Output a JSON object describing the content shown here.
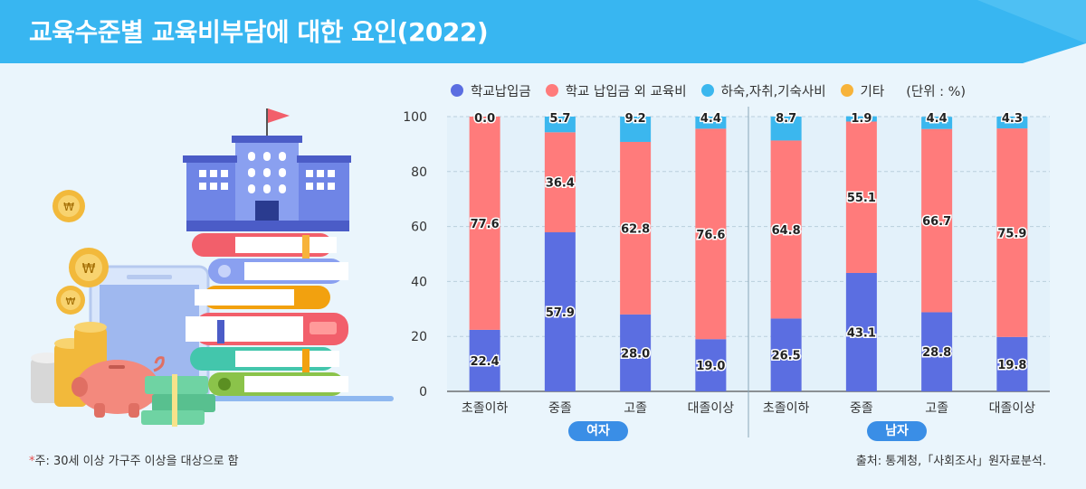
{
  "header": {
    "title": "교육수준별 교육비부담에 대한 요인(2022)",
    "bg_color": "#38b6f1"
  },
  "legend": {
    "items": [
      {
        "label": "학교납입금",
        "color": "#5b6ee1"
      },
      {
        "label": "학교 납입금 외 교육비",
        "color": "#ff7b7b"
      },
      {
        "label": "하숙,자취,기숙사비",
        "color": "#3bb7ee"
      },
      {
        "label": "기타",
        "color": "#f7b33a"
      }
    ],
    "unit": "(단위 : %)"
  },
  "groups": [
    {
      "label": "여자"
    },
    {
      "label": "남자"
    }
  ],
  "footnote": {
    "star": "*",
    "text": "주: 30세 이상 가구주 이상을 대상으로 함"
  },
  "source": "출처: 통계청,「사회조사」원자료분석.",
  "chart_data": {
    "type": "bar",
    "stacked": true,
    "categories": [
      "초졸이하",
      "중졸",
      "고졸",
      "대졸이상",
      "초졸이하",
      "중졸",
      "고졸",
      "대졸이상"
    ],
    "group_labels": [
      "여자",
      "여자",
      "여자",
      "여자",
      "남자",
      "남자",
      "남자",
      "남자"
    ],
    "series": [
      {
        "name": "학교납입금",
        "values": [
          22.4,
          57.9,
          28.0,
          19.0,
          26.5,
          43.1,
          28.8,
          19.8
        ]
      },
      {
        "name": "학교 납입금 외 교육비",
        "values": [
          77.6,
          36.4,
          62.8,
          76.6,
          64.8,
          55.1,
          66.7,
          75.9
        ]
      },
      {
        "name": "하숙,자취,기숙사비",
        "values": [
          0.0,
          5.7,
          9.2,
          4.4,
          8.7,
          1.9,
          4.4,
          4.3
        ]
      }
    ],
    "value_labels": [
      [
        "22.4",
        "57.9",
        "28.0",
        "19.0",
        "26.5",
        "43.1",
        "28.8",
        "19.8"
      ],
      [
        "77.6",
        "36.4",
        "62.8",
        "76.6",
        "64.8",
        "55.1",
        "66.7",
        "75.9"
      ],
      [
        "0.0",
        "5.7",
        "9.2",
        "4.4",
        "8.7",
        "1.9",
        "4.4",
        "4.3"
      ]
    ],
    "colors": [
      "#5b6ee1",
      "#ff7b7b",
      "#3bb7ee"
    ],
    "yticks": [
      "0",
      "20",
      "40",
      "60",
      "80",
      "100"
    ],
    "ylim": [
      0,
      100
    ],
    "grid": true,
    "legend_position": "top"
  }
}
